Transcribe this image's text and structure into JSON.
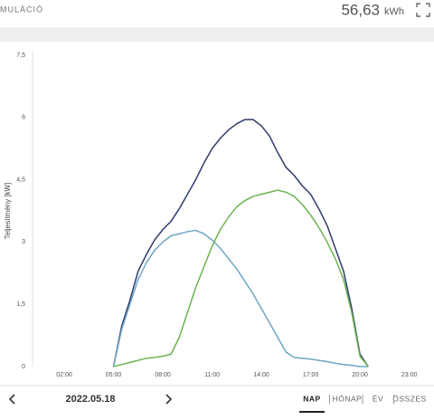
{
  "header": {
    "title": "MULÁCIÓ",
    "total": "56,63",
    "unit": "kWh"
  },
  "chart_data": {
    "type": "line",
    "y_label": "Teljesítmény [kW]",
    "x": [
      5,
      5.5,
      6,
      6.5,
      7,
      7.5,
      8,
      8.5,
      9,
      9.5,
      10,
      10.5,
      11,
      11.5,
      12,
      12.5,
      13,
      13.5,
      14,
      14.5,
      15,
      15.5,
      16,
      16.5,
      17,
      17.5,
      18,
      18.5,
      19,
      19.5,
      20,
      20.5
    ],
    "series": [
      {
        "color": "#2f3b6b",
        "values": [
          0,
          0.98,
          1.6,
          2.3,
          2.7,
          3.05,
          3.3,
          3.5,
          3.8,
          4.15,
          4.5,
          4.9,
          5.25,
          5.5,
          5.7,
          5.85,
          5.95,
          5.95,
          5.8,
          5.55,
          5.15,
          4.8,
          4.6,
          4.35,
          4.15,
          3.8,
          3.4,
          2.85,
          2.3,
          1.4,
          0.3,
          0
        ]
      },
      {
        "color": "#6fa6c6",
        "values": [
          0,
          0.9,
          1.5,
          2.1,
          2.5,
          2.8,
          3.0,
          3.15,
          3.2,
          3.25,
          3.28,
          3.2,
          3.05,
          2.85,
          2.6,
          2.35,
          2.05,
          1.75,
          1.4,
          1.05,
          0.7,
          0.35,
          0.22,
          0.2,
          0.18,
          0.15,
          0.12,
          0.08,
          0.05,
          0.03,
          0,
          0
        ]
      },
      {
        "color": "#6cb451",
        "values": [
          0,
          0.05,
          0.1,
          0.15,
          0.2,
          0.22,
          0.25,
          0.3,
          0.7,
          1.3,
          1.9,
          2.4,
          2.9,
          3.3,
          3.6,
          3.85,
          4.0,
          4.1,
          4.15,
          4.2,
          4.25,
          4.2,
          4.1,
          3.9,
          3.65,
          3.35,
          3.0,
          2.6,
          2.1,
          1.3,
          0.25,
          0
        ]
      }
    ],
    "xlim": [
      0,
      24
    ],
    "xticks": [
      {
        "value": 2,
        "label": "02:00"
      },
      {
        "value": 5,
        "label": "05:00"
      },
      {
        "value": 8,
        "label": "08:00"
      },
      {
        "value": 11,
        "label": "11:00"
      },
      {
        "value": 14,
        "label": "14:00"
      },
      {
        "value": 17,
        "label": "17:00"
      },
      {
        "value": 20,
        "label": "20:00"
      },
      {
        "value": 23,
        "label": "23:00"
      }
    ],
    "ylim": [
      0,
      7.5
    ],
    "yticks": [
      0,
      {
        "value": 1.5,
        "label": "1,5"
      },
      3,
      {
        "value": 4.5,
        "label": "4,5"
      },
      6,
      {
        "value": 7.5,
        "label": "7,5"
      }
    ],
    "grid": false
  },
  "nav": {
    "date": "2022.05.18",
    "tabs": [
      "NAP",
      "HÓNAP",
      "ÉV",
      "ÖSSZES"
    ],
    "active": 0
  }
}
